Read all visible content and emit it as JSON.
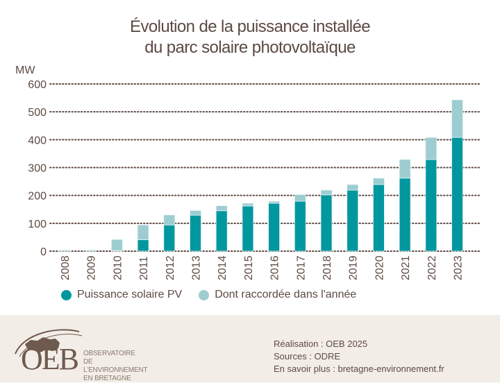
{
  "title": {
    "line1": "Évolution de la puissance installée",
    "line2": "du parc solaire photovoltaïque"
  },
  "colors": {
    "dark": "#00979e",
    "light": "#9dcdd1",
    "text": "#5c4a42",
    "grid": "#5c4a42",
    "footer_bg": "#f2ede6"
  },
  "chart_data": {
    "type": "bar",
    "stacked": true,
    "title": "Évolution de la puissance installée du parc solaire photovoltaïque",
    "xlabel": "",
    "ylabel": "MW",
    "ylim": [
      0,
      600
    ],
    "yticks": [
      0,
      100,
      200,
      300,
      400,
      500,
      600
    ],
    "grid": true,
    "legend_position": "bottom-left",
    "categories": [
      "2008",
      "2009",
      "2010",
      "2011",
      "2012",
      "2013",
      "2014",
      "2015",
      "2016",
      "2017",
      "2018",
      "2019",
      "2020",
      "2021",
      "2022",
      "2023"
    ],
    "series": [
      {
        "name": "Puissance solaire PV",
        "color": "#00979e",
        "values": [
          0,
          0,
          2,
          41,
          94,
          129,
          145,
          162,
          172,
          179,
          202,
          219,
          239,
          262,
          329,
          408
        ]
      },
      {
        "name": "Dont raccordée dans l'année",
        "color": "#9dcdd1",
        "values": [
          4,
          4,
          40,
          53,
          36,
          17,
          18,
          10,
          7,
          24,
          17,
          20,
          23,
          67,
          79,
          135
        ]
      }
    ]
  },
  "legend": [
    {
      "label": "Puissance solaire PV",
      "color": "#00979e"
    },
    {
      "label": "Dont raccordée dans l'année",
      "color": "#9dcdd1"
    }
  ],
  "footer": {
    "logo": {
      "abbr": "OEB",
      "line1": "OBSERVATOIRE",
      "line2": "DE L'ENVIRONNEMENT",
      "line3": "EN BRETAGNE"
    },
    "credits": {
      "realisation": "Réalisation : OEB 2025",
      "sources": "Sources : ODRE",
      "more": "En savoir plus : bretagne-environnement.fr"
    }
  }
}
